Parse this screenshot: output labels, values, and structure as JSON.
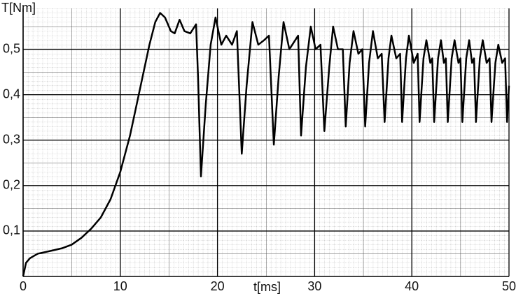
{
  "chart_data": {
    "type": "line",
    "ylabel": "T[Nm]",
    "xlabel": "t[ms]",
    "xlim": [
      0,
      50
    ],
    "ylim": [
      0,
      0.59
    ],
    "xticks": [
      0,
      10,
      20,
      30,
      40,
      50
    ],
    "yticks": [
      {
        "value": 0.1,
        "label": "0,1"
      },
      {
        "value": 0.2,
        "label": "0,2"
      },
      {
        "value": 0.3,
        "label": "0,3"
      },
      {
        "value": 0.4,
        "label": "0,4"
      },
      {
        "value": 0.5,
        "label": "0,5"
      }
    ],
    "grid": true,
    "series": [
      {
        "color": "#000000",
        "x": [
          0,
          0.3,
          0.7,
          1.5,
          3,
          4,
          5,
          6,
          7,
          8,
          9,
          10,
          11,
          12,
          13,
          13.6,
          14.1,
          14.6,
          15.2,
          15.6,
          16.1,
          16.6,
          17.2,
          17.8,
          18.0,
          18.3,
          18.8,
          19.3,
          19.8,
          20.4,
          20.9,
          21.5,
          22.0,
          22.5,
          23.0,
          23.6,
          24.2,
          24.8,
          25.3,
          25.8,
          26.3,
          26.8,
          27.4,
          28.0,
          28.3,
          28.6,
          29.1,
          29.6,
          30.1,
          30.6,
          31.0,
          31.5,
          31.9,
          32.4,
          32.9,
          33.2,
          33.6,
          34.0,
          34.5,
          34.9,
          35.2,
          35.6,
          36.0,
          36.5,
          36.9,
          37.2,
          37.6,
          37.9,
          38.4,
          38.8,
          39.0,
          39.4,
          39.7,
          40.2,
          40.6,
          40.8,
          41.2,
          41.5,
          41.9,
          42.1,
          42.3,
          42.7,
          43.0,
          43.3,
          43.5,
          43.7,
          44.1,
          44.4,
          44.8,
          45.0,
          45.2,
          45.6,
          45.9,
          46.2,
          46.4,
          46.6,
          47.0,
          47.3,
          47.7,
          48.0,
          48.2,
          48.6,
          48.9,
          49.3,
          49.6,
          49.8,
          50
        ],
        "values": [
          0.0,
          0.03,
          0.04,
          0.05,
          0.057,
          0.062,
          0.07,
          0.085,
          0.105,
          0.13,
          0.17,
          0.23,
          0.31,
          0.41,
          0.51,
          0.56,
          0.58,
          0.57,
          0.54,
          0.535,
          0.565,
          0.54,
          0.535,
          0.555,
          0.44,
          0.22,
          0.38,
          0.51,
          0.57,
          0.51,
          0.53,
          0.51,
          0.54,
          0.27,
          0.42,
          0.56,
          0.51,
          0.52,
          0.53,
          0.29,
          0.44,
          0.56,
          0.5,
          0.52,
          0.53,
          0.31,
          0.46,
          0.55,
          0.5,
          0.51,
          0.32,
          0.46,
          0.55,
          0.5,
          0.5,
          0.33,
          0.47,
          0.54,
          0.49,
          0.5,
          0.33,
          0.47,
          0.54,
          0.48,
          0.49,
          0.34,
          0.48,
          0.53,
          0.48,
          0.49,
          0.34,
          0.48,
          0.53,
          0.47,
          0.49,
          0.34,
          0.48,
          0.52,
          0.47,
          0.48,
          0.34,
          0.48,
          0.52,
          0.47,
          0.48,
          0.34,
          0.48,
          0.52,
          0.47,
          0.48,
          0.34,
          0.48,
          0.52,
          0.47,
          0.48,
          0.34,
          0.48,
          0.52,
          0.47,
          0.48,
          0.34,
          0.47,
          0.51,
          0.47,
          0.48,
          0.34,
          0.42
        ]
      }
    ]
  }
}
